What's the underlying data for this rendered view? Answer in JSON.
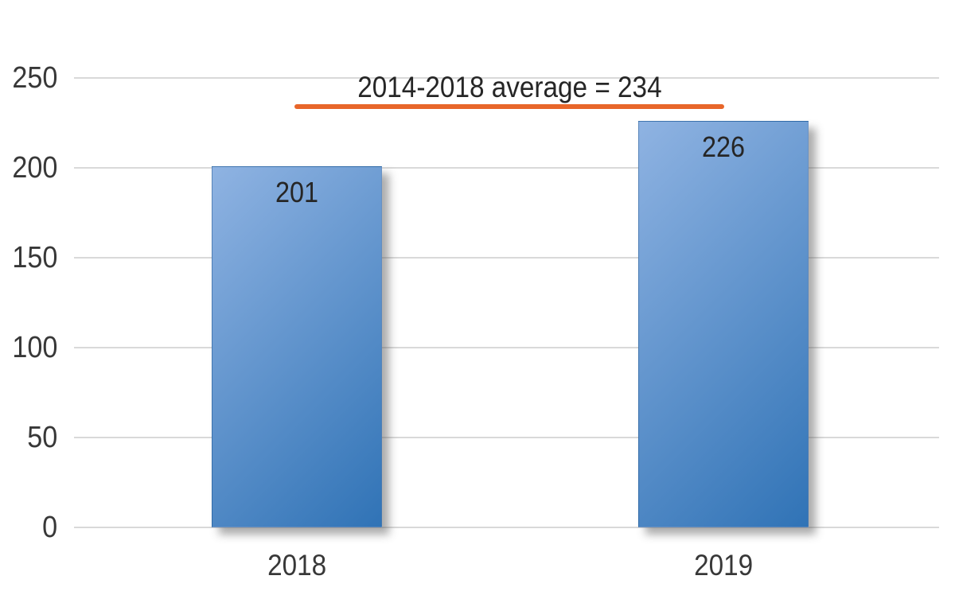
{
  "chart_data": {
    "type": "bar",
    "categories": [
      "2018",
      "2019"
    ],
    "values": [
      201,
      226
    ],
    "value_labels": [
      "201",
      "226"
    ],
    "title": "",
    "xlabel": "",
    "ylabel": "",
    "yticks": [
      0,
      50,
      100,
      150,
      200,
      250
    ],
    "ylim": [
      0,
      250
    ],
    "grid": true,
    "legend": false,
    "annotation": {
      "text": "2014-2018 average = 234",
      "value": 234
    }
  },
  "colors": {
    "bar_gradient_light": "#8FB3E2",
    "bar_gradient_dark": "#3073B6",
    "average_line": "#E8662A",
    "axis_text": "#383838",
    "label_text": "#262626",
    "gridline": "#D9D9D9",
    "background": "#FFFFFF"
  }
}
